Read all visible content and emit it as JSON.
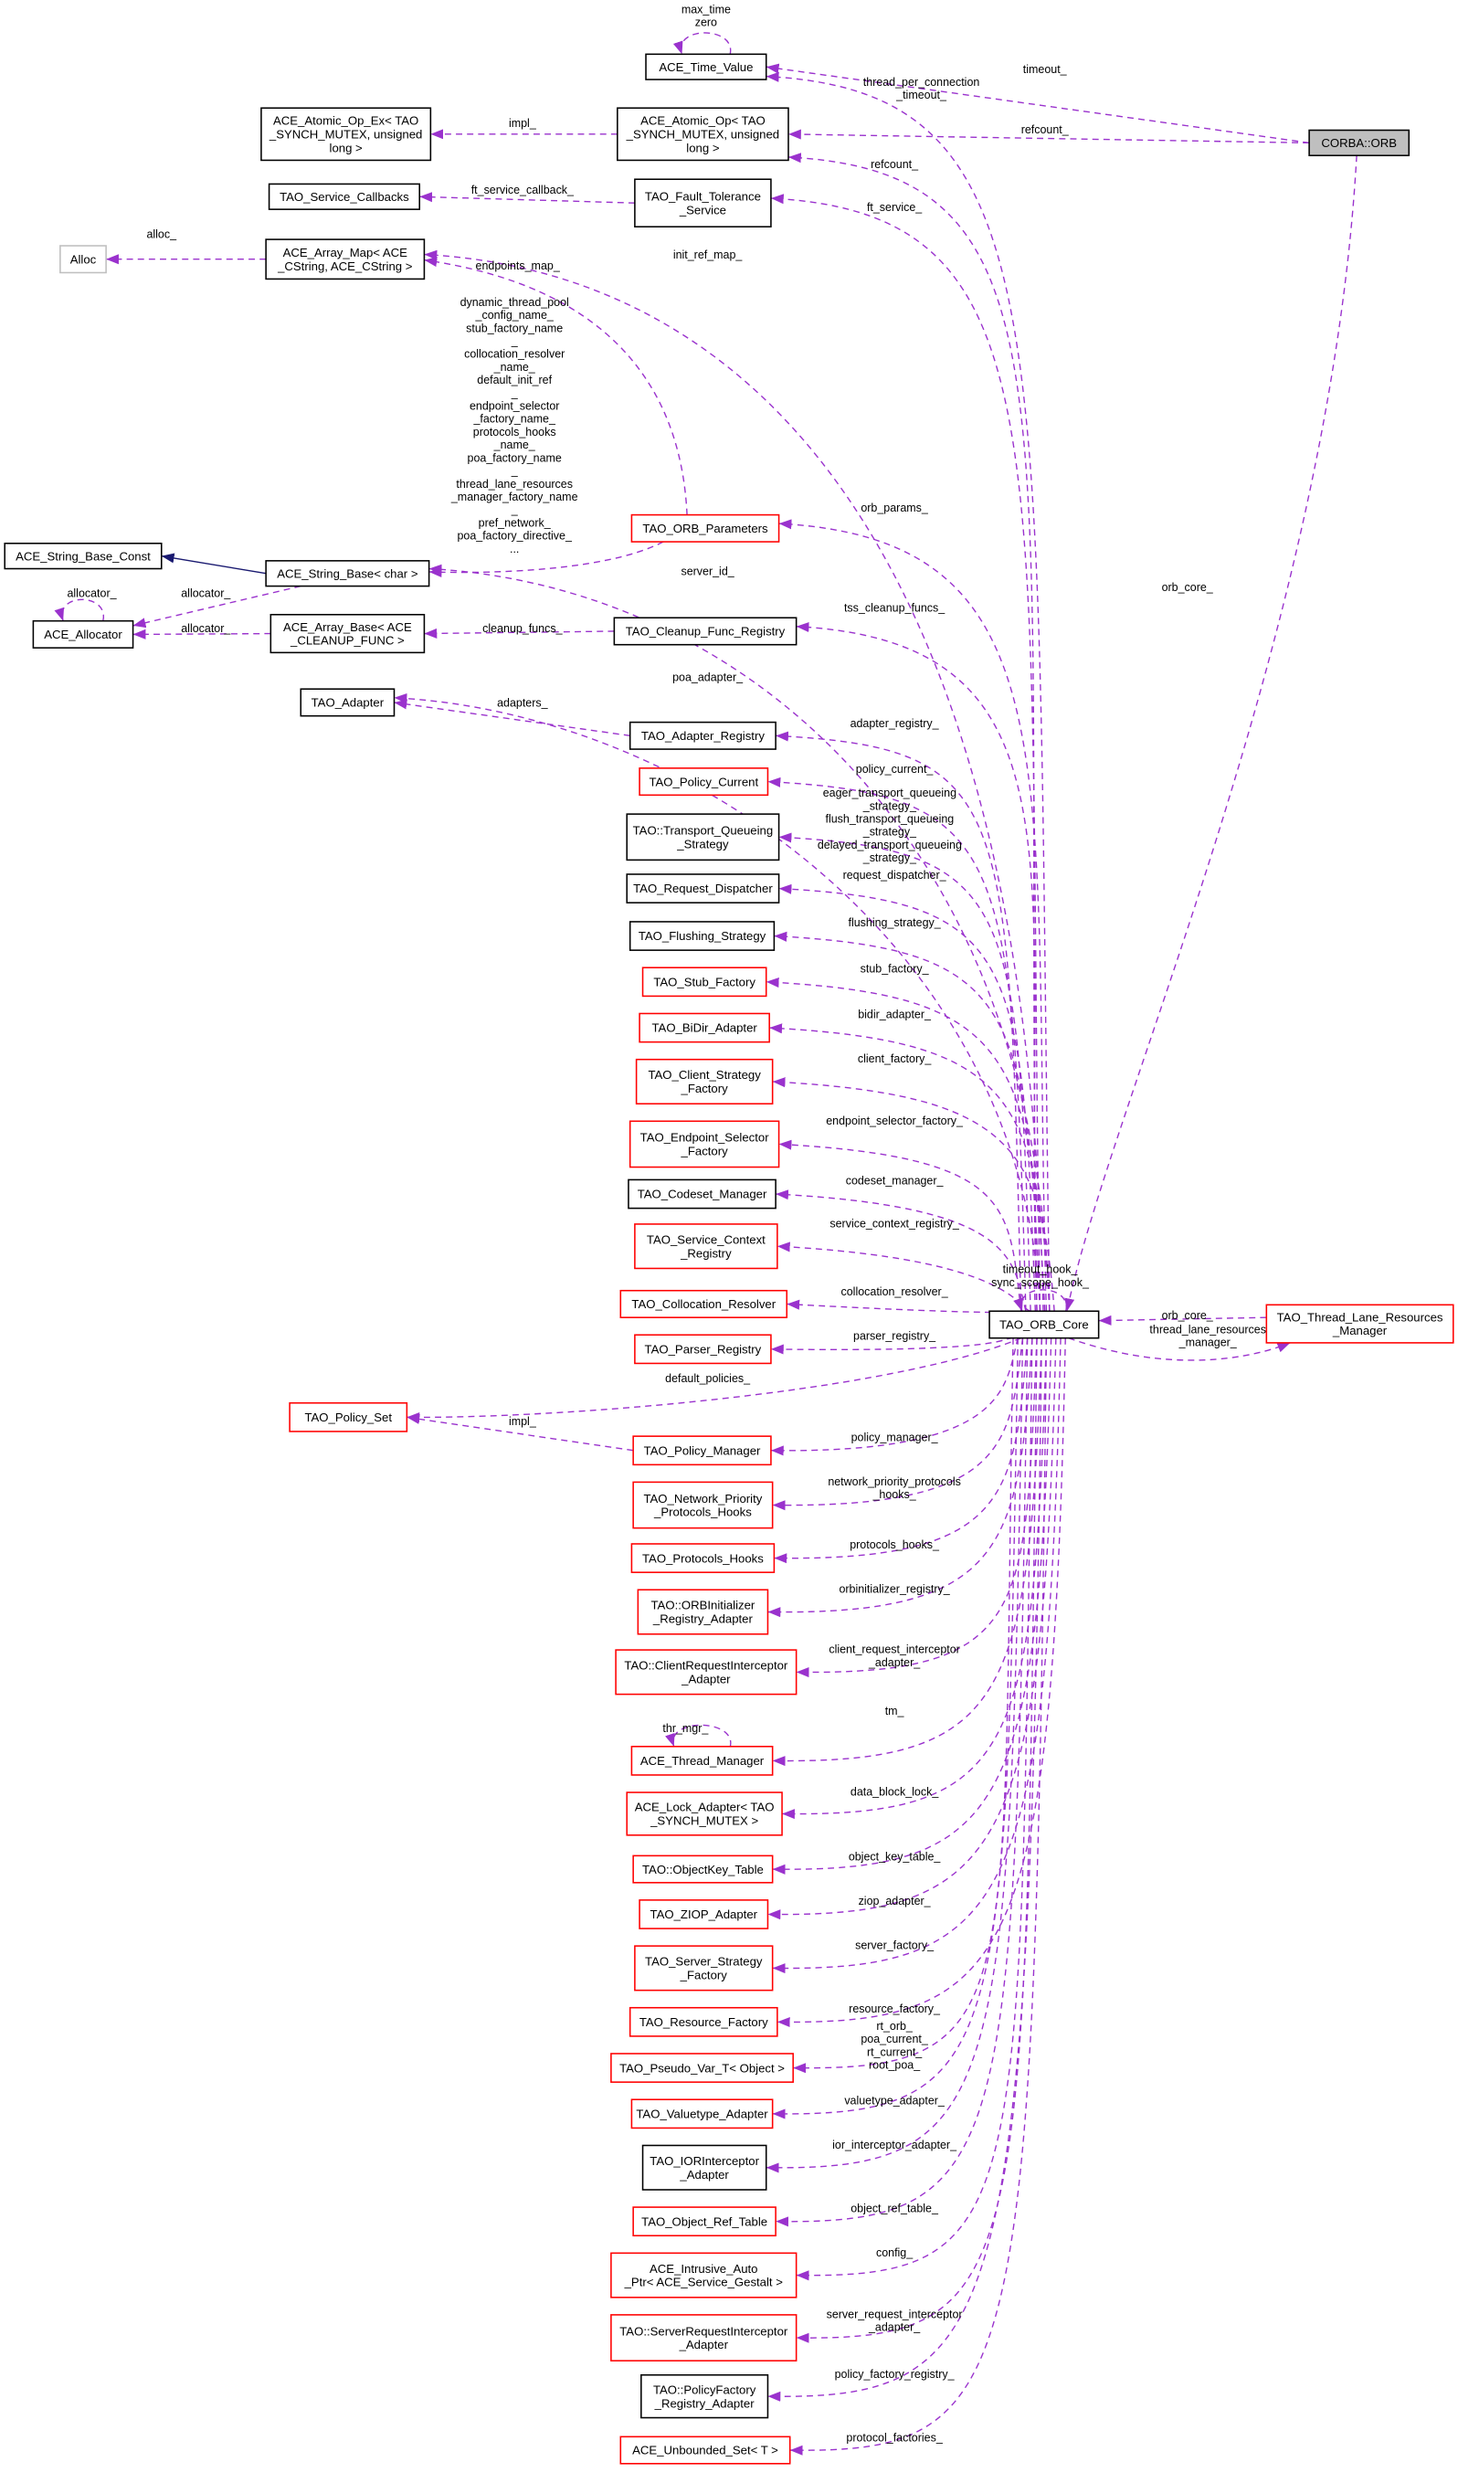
{
  "colors": {
    "usage_edge": "#9a32cd",
    "inherit_edge": "#191970",
    "documented_border": "#000000",
    "undocumented_border": "#ff0000",
    "external_border": "#bfbfbf",
    "focus_fill": "#bfbfbf"
  },
  "nodes": [
    {
      "id": "orb",
      "label": "CORBA::ORB",
      "border": "black",
      "focus": true
    },
    {
      "id": "time",
      "label": "ACE_Time_Value",
      "border": "black"
    },
    {
      "id": "atomicEx",
      "label": "ACE_Atomic_Op_Ex< TAO\n_SYNCH_MUTEX, unsigned\nlong >",
      "border": "black"
    },
    {
      "id": "atomic",
      "label": "ACE_Atomic_Op< TAO\n_SYNCH_MUTEX, unsigned\nlong >",
      "border": "black"
    },
    {
      "id": "cb",
      "label": "TAO_Service_Callbacks",
      "border": "black"
    },
    {
      "id": "ft",
      "label": "TAO_Fault_Tolerance\n_Service",
      "border": "black"
    },
    {
      "id": "alloc",
      "label": "Alloc",
      "border": "gray"
    },
    {
      "id": "amap",
      "label": "ACE_Array_Map< ACE\n_CString, ACE_CString >",
      "border": "black"
    },
    {
      "id": "params",
      "label": "TAO_ORB_Parameters",
      "border": "red"
    },
    {
      "id": "sconst",
      "label": "ACE_String_Base_Const",
      "border": "black"
    },
    {
      "id": "sbase",
      "label": "ACE_String_Base< char >",
      "border": "black"
    },
    {
      "id": "allocator",
      "label": "ACE_Allocator",
      "border": "black"
    },
    {
      "id": "abase",
      "label": "ACE_Array_Base< ACE\n_CLEANUP_FUNC >",
      "border": "black"
    },
    {
      "id": "cleanup",
      "label": "TAO_Cleanup_Func_Registry",
      "border": "black"
    },
    {
      "id": "adapter",
      "label": "TAO_Adapter",
      "border": "black"
    },
    {
      "id": "areg",
      "label": "TAO_Adapter_Registry",
      "border": "black"
    },
    {
      "id": "pcur",
      "label": "TAO_Policy_Current",
      "border": "red"
    },
    {
      "id": "tqs",
      "label": "TAO::Transport_Queueing\n_Strategy",
      "border": "black"
    },
    {
      "id": "rdisp",
      "label": "TAO_Request_Dispatcher",
      "border": "black"
    },
    {
      "id": "flush",
      "label": "TAO_Flushing_Strategy",
      "border": "black"
    },
    {
      "id": "stub",
      "label": "TAO_Stub_Factory",
      "border": "red"
    },
    {
      "id": "bidir",
      "label": "TAO_BiDir_Adapter",
      "border": "red"
    },
    {
      "id": "csf",
      "label": "TAO_Client_Strategy\n_Factory",
      "border": "red"
    },
    {
      "id": "esf",
      "label": "TAO_Endpoint_Selector\n_Factory",
      "border": "red"
    },
    {
      "id": "codeset",
      "label": "TAO_Codeset_Manager",
      "border": "black"
    },
    {
      "id": "scr",
      "label": "TAO_Service_Context\n_Registry",
      "border": "red"
    },
    {
      "id": "coll",
      "label": "TAO_Collocation_Resolver",
      "border": "red"
    },
    {
      "id": "core",
      "label": "TAO_ORB_Core",
      "border": "black"
    },
    {
      "id": "tlrm",
      "label": "TAO_Thread_Lane_Resources\n_Manager",
      "border": "red"
    },
    {
      "id": "parser",
      "label": "TAO_Parser_Registry",
      "border": "red"
    },
    {
      "id": "pset",
      "label": "TAO_Policy_Set",
      "border": "red"
    },
    {
      "id": "pman",
      "label": "TAO_Policy_Manager",
      "border": "red"
    },
    {
      "id": "npph",
      "label": "TAO_Network_Priority\n_Protocols_Hooks",
      "border": "red"
    },
    {
      "id": "phooks",
      "label": "TAO_Protocols_Hooks",
      "border": "red"
    },
    {
      "id": "orbinit",
      "label": "TAO::ORBInitializer\n_Registry_Adapter",
      "border": "red"
    },
    {
      "id": "cria",
      "label": "TAO::ClientRequestInterceptor\n_Adapter",
      "border": "red"
    },
    {
      "id": "thrmgr",
      "label": "ACE_Thread_Manager",
      "border": "red"
    },
    {
      "id": "lock",
      "label": "ACE_Lock_Adapter< TAO\n_SYNCH_MUTEX >",
      "border": "red"
    },
    {
      "id": "okt",
      "label": "TAO::ObjectKey_Table",
      "border": "red"
    },
    {
      "id": "ziop",
      "label": "TAO_ZIOP_Adapter",
      "border": "red"
    },
    {
      "id": "ssf",
      "label": "TAO_Server_Strategy\n_Factory",
      "border": "red"
    },
    {
      "id": "rf",
      "label": "TAO_Resource_Factory",
      "border": "red"
    },
    {
      "id": "pvar",
      "label": "TAO_Pseudo_Var_T< Object >",
      "border": "red"
    },
    {
      "id": "vt",
      "label": "TAO_Valuetype_Adapter",
      "border": "red"
    },
    {
      "id": "iori",
      "label": "TAO_IORInterceptor\n_Adapter",
      "border": "black"
    },
    {
      "id": "ort",
      "label": "TAO_Object_Ref_Table",
      "border": "red"
    },
    {
      "id": "iap",
      "label": "ACE_Intrusive_Auto\n_Ptr< ACE_Service_Gestalt >",
      "border": "red"
    },
    {
      "id": "sria",
      "label": "TAO::ServerRequestInterceptor\n_Adapter",
      "border": "red"
    },
    {
      "id": "pfra",
      "label": "TAO::PolicyFactory\n_Registry_Adapter",
      "border": "black"
    },
    {
      "id": "uset",
      "label": "ACE_Unbounded_Set< T >",
      "border": "red"
    }
  ],
  "edges": [
    {
      "from": "orb",
      "to": "time",
      "label": "timeout_"
    },
    {
      "from": "orb",
      "to": "atomic",
      "label": "refcount_"
    },
    {
      "from": "orb",
      "to": "core",
      "label": "orb_core_"
    },
    {
      "from": "atomic",
      "to": "atomicEx",
      "label": "impl_"
    },
    {
      "from": "ft",
      "to": "cb",
      "label": "ft_service_callback_"
    },
    {
      "from": "amap",
      "to": "alloc",
      "label": "alloc_"
    },
    {
      "from": "params",
      "to": "amap",
      "label": "endpoints_map_"
    },
    {
      "from": "params",
      "to": "sbase",
      "label": "dynamic_thread_pool\n_config_name_\nstub_factory_name\n_\ncollocation_resolver\n_name_\ndefault_init_ref\n_\nendpoint_selector\n_factory_name_\nprotocols_hooks\n_name_\npoa_factory_name\n_\nthread_lane_resources\n_manager_factory_name\n_\npref_network_\npoa_factory_directive_\n..."
    },
    {
      "from": "sbase",
      "to": "sconst",
      "label": "",
      "kind": "inherit"
    },
    {
      "from": "sbase",
      "to": "allocator",
      "label": "allocator_"
    },
    {
      "from": "allocator",
      "to": "allocator",
      "label": "allocator_"
    },
    {
      "from": "abase",
      "to": "allocator",
      "label": "allocator_"
    },
    {
      "from": "cleanup",
      "to": "abase",
      "label": "cleanup_funcs_"
    },
    {
      "from": "time",
      "to": "time",
      "label": "max_time\nzero"
    },
    {
      "from": "core",
      "to": "time",
      "label": "thread_per_connection\n_timeout_"
    },
    {
      "from": "core",
      "to": "atomic",
      "label": "refcount_"
    },
    {
      "from": "core",
      "to": "ft",
      "label": "ft_service_"
    },
    {
      "from": "core",
      "to": "amap",
      "label": "init_ref_map_"
    },
    {
      "from": "core",
      "to": "params",
      "label": "orb_params_"
    },
    {
      "from": "core",
      "to": "sbase",
      "label": "server_id_"
    },
    {
      "from": "core",
      "to": "cleanup",
      "label": "tss_cleanup_funcs_"
    },
    {
      "from": "core",
      "to": "adapter",
      "label": "poa_adapter_"
    },
    {
      "from": "areg",
      "to": "adapter",
      "label": "adapters_"
    },
    {
      "from": "core",
      "to": "areg",
      "label": "adapter_registry_"
    },
    {
      "from": "core",
      "to": "pcur",
      "label": "policy_current_"
    },
    {
      "from": "core",
      "to": "tqs",
      "label": "eager_transport_queueing\n_strategy_\nflush_transport_queueing\n_strategy_\ndelayed_transport_queueing\n_strategy_"
    },
    {
      "from": "core",
      "to": "rdisp",
      "label": "request_dispatcher_"
    },
    {
      "from": "core",
      "to": "flush",
      "label": "flushing_strategy_"
    },
    {
      "from": "core",
      "to": "stub",
      "label": "stub_factory_"
    },
    {
      "from": "core",
      "to": "bidir",
      "label": "bidir_adapter_"
    },
    {
      "from": "core",
      "to": "csf",
      "label": "client_factory_"
    },
    {
      "from": "core",
      "to": "esf",
      "label": "endpoint_selector_factory_"
    },
    {
      "from": "core",
      "to": "codeset",
      "label": "codeset_manager_"
    },
    {
      "from": "core",
      "to": "scr",
      "label": "service_context_registry_"
    },
    {
      "from": "core",
      "to": "coll",
      "label": "collocation_resolver_"
    },
    {
      "from": "core",
      "to": "core",
      "label": "timeout_hook_\nsync_scope_hook_"
    },
    {
      "from": "core",
      "to": "tlrm",
      "label": "thread_lane_resources\n_manager_"
    },
    {
      "from": "tlrm",
      "to": "core",
      "label": "orb_core_"
    },
    {
      "from": "core",
      "to": "parser",
      "label": "parser_registry_"
    },
    {
      "from": "core",
      "to": "pset",
      "label": "default_policies_"
    },
    {
      "from": "pman",
      "to": "pset",
      "label": "impl_"
    },
    {
      "from": "core",
      "to": "pman",
      "label": "policy_manager_"
    },
    {
      "from": "core",
      "to": "npph",
      "label": "network_priority_protocols\n_hooks_"
    },
    {
      "from": "core",
      "to": "phooks",
      "label": "protocols_hooks_"
    },
    {
      "from": "core",
      "to": "orbinit",
      "label": "orbinitializer_registry_"
    },
    {
      "from": "core",
      "to": "cria",
      "label": "client_request_interceptor\n_adapter_"
    },
    {
      "from": "core",
      "to": "thrmgr",
      "label": "tm_"
    },
    {
      "from": "thrmgr",
      "to": "thrmgr",
      "label": "thr_mgr_"
    },
    {
      "from": "core",
      "to": "lock",
      "label": "data_block_lock_"
    },
    {
      "from": "core",
      "to": "okt",
      "label": "object_key_table_"
    },
    {
      "from": "core",
      "to": "ziop",
      "label": "ziop_adapter_"
    },
    {
      "from": "core",
      "to": "ssf",
      "label": "server_factory_"
    },
    {
      "from": "core",
      "to": "rf",
      "label": "resource_factory_"
    },
    {
      "from": "core",
      "to": "pvar",
      "label": "rt_orb_\npoa_current_\nrt_current_\nroot_poa_"
    },
    {
      "from": "core",
      "to": "vt",
      "label": "valuetype_adapter_"
    },
    {
      "from": "core",
      "to": "iori",
      "label": "ior_interceptor_adapter_"
    },
    {
      "from": "core",
      "to": "ort",
      "label": "object_ref_table_"
    },
    {
      "from": "core",
      "to": "iap",
      "label": "config_"
    },
    {
      "from": "core",
      "to": "sria",
      "label": "server_request_interceptor\n_adapter_"
    },
    {
      "from": "core",
      "to": "pfra",
      "label": "policy_factory_registry_"
    },
    {
      "from": "core",
      "to": "uset",
      "label": "protocol_factories_"
    }
  ]
}
